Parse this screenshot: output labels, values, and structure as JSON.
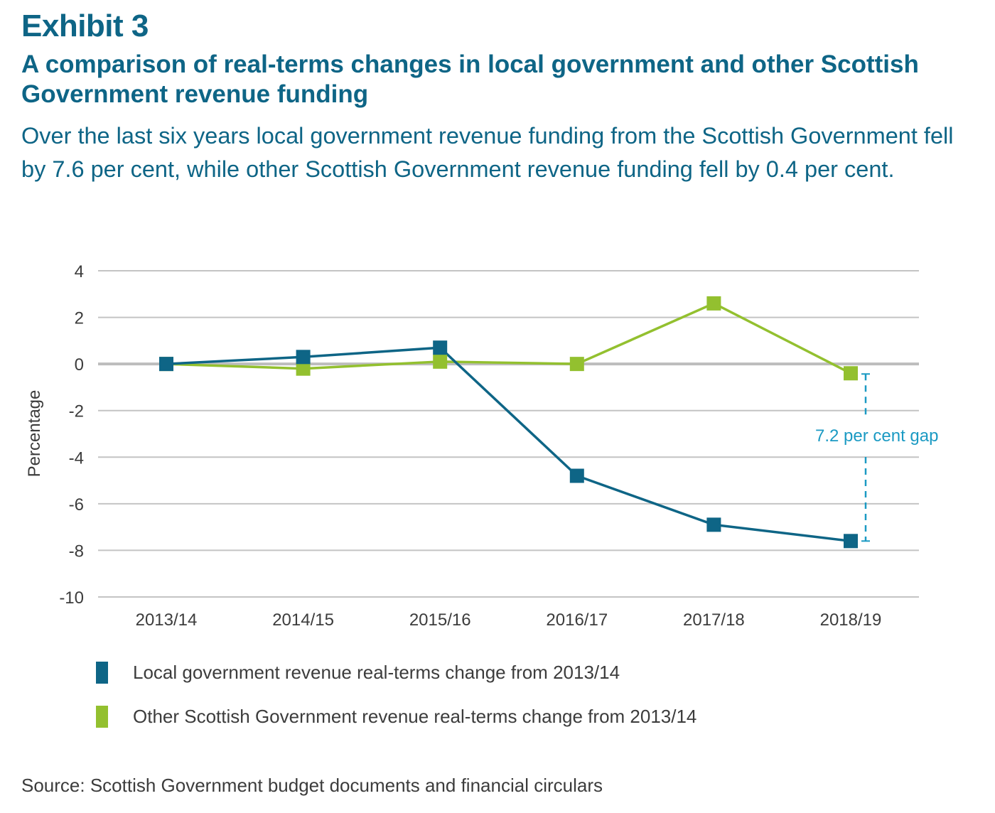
{
  "header": {
    "exhibit": "Exhibit 3",
    "title": "A comparison of real-terms changes in local government and other Scottish Government revenue funding",
    "subtitle": "Over the last six years local government revenue funding from the Scottish Government fell by 7.6 per cent, while other Scottish Government revenue funding fell by 0.4 per cent."
  },
  "colors": {
    "local": "#0e6586",
    "other": "#93c02f",
    "annotation": "#1b9ac3",
    "grid": "#c4c4c4",
    "zero_line": "#bdbdbd",
    "text": "#3c3c3c",
    "heading": "#0e6586"
  },
  "chart_data": {
    "type": "line",
    "title": "A comparison of real-terms changes in local government and other Scottish Government revenue funding",
    "xlabel": "",
    "ylabel": "Percentage",
    "categories": [
      "2013/14",
      "2014/15",
      "2015/16",
      "2016/17",
      "2017/18",
      "2018/19"
    ],
    "ylim": [
      -10,
      4
    ],
    "yticks": [
      4,
      2,
      0,
      -2,
      -4,
      -6,
      -8,
      -10
    ],
    "ytick_labels": [
      "4",
      "2",
      "0",
      "-2",
      "-4",
      "-6",
      "-8",
      "-10"
    ],
    "grid": true,
    "series": [
      {
        "name": "Local government revenue real-terms change from 2013/14",
        "key": "local",
        "values": [
          0,
          0.3,
          0.7,
          -4.8,
          -6.9,
          -7.6
        ]
      },
      {
        "name": "Other Scottish Government revenue real-terms change from 2013/14",
        "key": "other",
        "values": [
          0,
          -0.2,
          0.1,
          0,
          2.6,
          -0.4
        ]
      }
    ],
    "annotations": [
      {
        "text": "7.2 per cent gap",
        "category": "2018/19",
        "from": -0.4,
        "to": -7.6
      }
    ],
    "legend_position": "bottom-left"
  },
  "source": "Source: Scottish Government budget documents and financial circulars"
}
